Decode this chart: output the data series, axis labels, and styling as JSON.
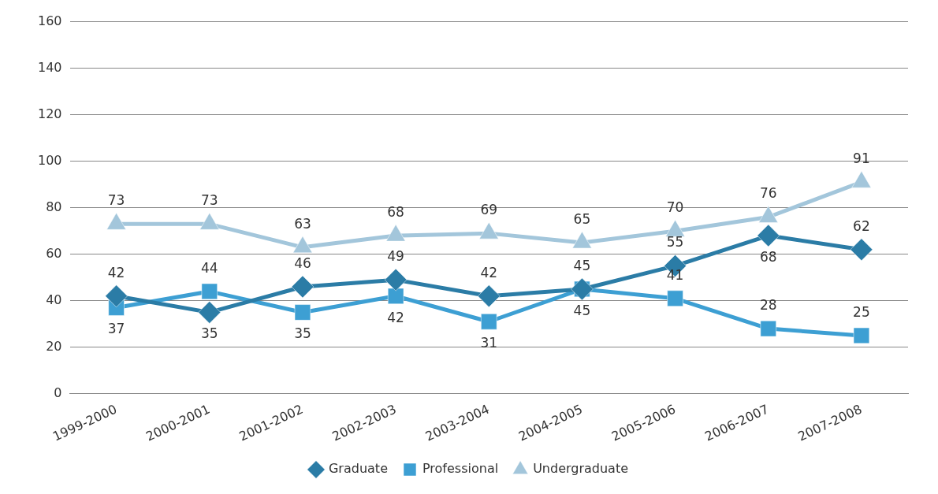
{
  "chart_data": {
    "type": "line",
    "categories": [
      "1999-2000",
      "2000-2001",
      "2001-2002",
      "2002-2003",
      "2003-2004",
      "2004-2005",
      "2005-2006",
      "2006-2007",
      "2007-2008"
    ],
    "series": [
      {
        "name": "Graduate",
        "color": "#2b7ca6",
        "marker": "diamond",
        "values": [
          42,
          35,
          46,
          49,
          42,
          45,
          55,
          68,
          62
        ]
      },
      {
        "name": "Professional",
        "color": "#3d9fd3",
        "marker": "square",
        "values": [
          37,
          44,
          35,
          42,
          31,
          45,
          41,
          28,
          25
        ]
      },
      {
        "name": "Undergraduate",
        "color": "#a3c6db",
        "marker": "triangle",
        "values": [
          73,
          73,
          63,
          68,
          69,
          65,
          70,
          76,
          91
        ]
      }
    ],
    "ylim": [
      0,
      160
    ],
    "yticks": [
      0,
      20,
      40,
      60,
      80,
      100,
      120,
      140,
      160
    ],
    "grid": "y",
    "legend": "bottom",
    "data_labels": true
  }
}
